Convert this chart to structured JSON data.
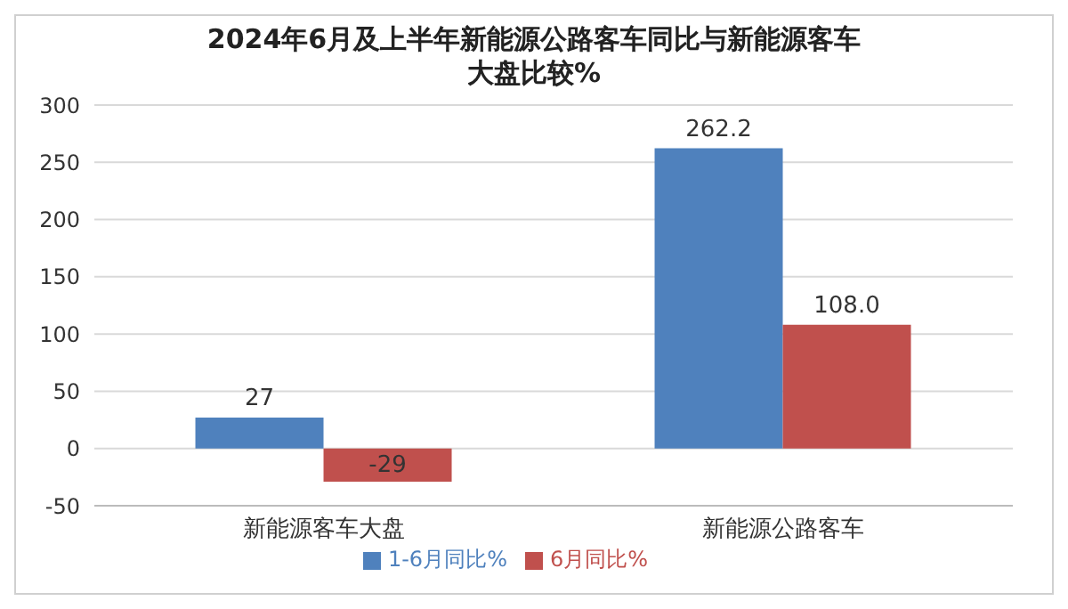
{
  "chart_data": {
    "type": "bar",
    "title": "2024年6月及上半年新能源公路客车同比与新能源客车大盘比较%",
    "categories": [
      "新能源客车大盘",
      "新能源公路客车"
    ],
    "series": [
      {
        "name": "1-6月同比%",
        "color": "#4f81bd",
        "values": [
          27,
          262.2
        ],
        "value_labels": [
          "27",
          "262.2"
        ]
      },
      {
        "name": "6月同比%",
        "color": "#c0504d",
        "values": [
          -29,
          108.0
        ],
        "value_labels": [
          "-29",
          "108.0"
        ]
      }
    ],
    "ylim": [
      -50,
      300
    ],
    "yticks": [
      -50,
      0,
      50,
      100,
      150,
      200,
      250,
      300
    ],
    "grid": "y",
    "legend": "bottom"
  }
}
